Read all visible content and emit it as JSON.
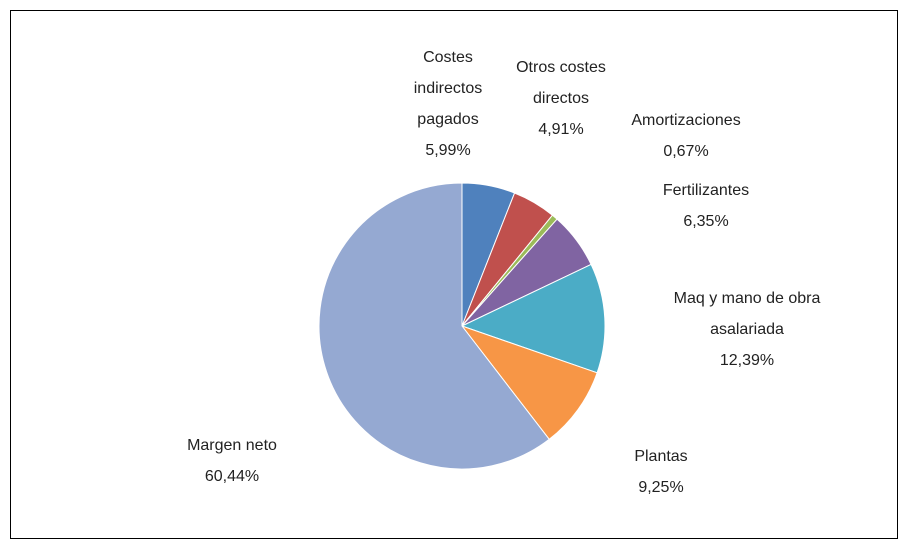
{
  "chart_data": {
    "type": "pie",
    "categories": [
      "Costes indirectos pagados",
      "Otros costes directos",
      "Amortizaciones",
      "Fertilizantes",
      "Maq y mano de obra asalariada",
      "Plantas",
      "Margen neto"
    ],
    "values": [
      5.99,
      4.91,
      0.67,
      6.35,
      12.39,
      9.25,
      60.44
    ],
    "value_labels": [
      "5,99%",
      "4,91%",
      "0,67%",
      "6,35%",
      "12,39%",
      "9,25%",
      "60,44%"
    ],
    "colors": [
      "#4f81bd",
      "#c0504d",
      "#9bbb59",
      "#8064a2",
      "#4bacc6",
      "#f79646",
      "#95a9d2"
    ]
  }
}
